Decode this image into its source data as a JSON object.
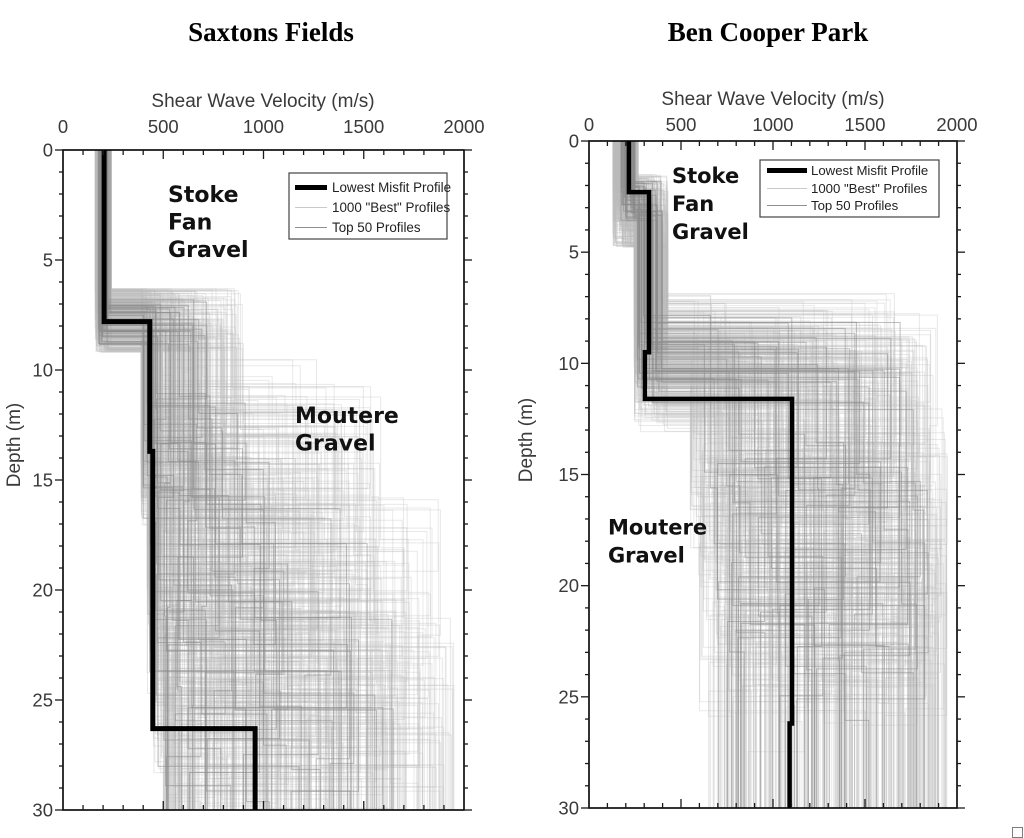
{
  "figure": {
    "background": "#ffffff",
    "axis_text_color": "#3a3a3a",
    "title_color": "#000000"
  },
  "corner_box": {
    "present": true
  },
  "chart_data": [
    {
      "type": "line",
      "subtype": "stepped shear-wave velocity vs depth profiles (inverted depth axis, velocity axis on top)",
      "title": "Saxtons Fields",
      "xlabel": "Shear Wave Velocity (m/s)",
      "ylabel": "Depth (m)",
      "xlim": [
        0,
        2000
      ],
      "ylim": [
        0,
        30
      ],
      "x_major_ticks": [
        0,
        500,
        1000,
        1500,
        2000
      ],
      "x_minor_step": 100,
      "y_major_ticks": [
        0,
        5,
        10,
        15,
        20,
        25,
        30
      ],
      "y_minor_step": 1,
      "legend": {
        "position": "upper-right",
        "entries": [
          {
            "label": "Lowest Misfit Profile",
            "line_color": "#000000",
            "line_width": 5
          },
          {
            "label": "1000 \"Best\" Profiles",
            "line_color": "#c9c9c9",
            "line_width": 1
          },
          {
            "label": "Top 50 Profiles",
            "line_color": "#8f8f8f",
            "line_width": 1
          }
        ]
      },
      "annotations": [
        {
          "lines": [
            "Stoke",
            "Fan",
            "Gravel"
          ],
          "v_mps": 524,
          "depth_m": 2.36
        },
        {
          "lines": [
            "Moutere",
            "Gravel"
          ],
          "v_mps": 1157,
          "depth_m": 12.4
        }
      ],
      "lowest_misfit_profile": {
        "color": "#000000",
        "layers": [
          {
            "v_mps": 205,
            "from_m": 0,
            "to_m": 7.8
          },
          {
            "v_mps": 433,
            "from_m": 7.8,
            "to_m": 13.7
          },
          {
            "v_mps": 448,
            "from_m": 13.7,
            "to_m": 26.3
          },
          {
            "v_mps": 958,
            "from_m": 26.3,
            "to_m": 30
          }
        ]
      },
      "ensembles": [
        {
          "name": "best-1000-profiles",
          "profiles_represented": 1000,
          "render_count": 380,
          "stroke": "#bdbdbd",
          "opacity": 0.33,
          "seed": 101,
          "layers": [
            [
              160,
              242,
              1,
              6.3,
              9.2
            ],
            [
              390,
              900,
              2,
              3,
              8.5
            ],
            [
              420,
              1600,
              2,
              3,
              8.5
            ],
            [
              450,
              1900,
              1.6,
              3,
              8
            ],
            [
              500,
              1950,
              1.4,
              30,
              30
            ]
          ]
        },
        {
          "name": "top-50-profiles",
          "profiles_represented": 50,
          "render_count": 50,
          "stroke": "#8a8a8a",
          "opacity": 0.55,
          "seed": 202,
          "layers": [
            [
              175,
              235,
              1,
              6.8,
              8.9
            ],
            [
              400,
              720,
              1.8,
              3.5,
              8.5
            ],
            [
              430,
              1050,
              1.6,
              3.5,
              8.5
            ],
            [
              460,
              1500,
              1.4,
              3,
              8
            ],
            [
              500,
              1700,
              1.2,
              30,
              30
            ]
          ]
        }
      ]
    },
    {
      "type": "line",
      "subtype": "stepped shear-wave velocity vs depth profiles (inverted depth axis, velocity axis on top)",
      "title": "Ben Cooper Park",
      "xlabel": "Shear Wave Velocity (m/s)",
      "ylabel": "Depth (m)",
      "xlim": [
        0,
        2000
      ],
      "ylim": [
        0,
        30
      ],
      "x_major_ticks": [
        0,
        500,
        1000,
        1500,
        2000
      ],
      "x_minor_step": 100,
      "y_major_ticks": [
        0,
        5,
        10,
        15,
        20,
        25,
        30
      ],
      "y_minor_step": 1,
      "legend": {
        "position": "upper-right",
        "entries": [
          {
            "label": "Lowest Misfit Profile",
            "line_color": "#000000",
            "line_width": 5
          },
          {
            "label": "1000 \"Best\" Profiles",
            "line_color": "#c9c9c9",
            "line_width": 1
          },
          {
            "label": "Top 50 Profiles",
            "line_color": "#8f8f8f",
            "line_width": 1
          }
        ]
      },
      "annotations": [
        {
          "lines": [
            "Stoke",
            "Fan",
            "Gravel"
          ],
          "v_mps": 451,
          "depth_m": 1.9
        },
        {
          "lines": [
            "Moutere",
            "Gravel"
          ],
          "v_mps": 103,
          "depth_m": 17.7
        }
      ],
      "lowest_misfit_profile": {
        "color": "#000000",
        "layers": [
          {
            "v_mps": 217,
            "from_m": 0,
            "to_m": 2.3
          },
          {
            "v_mps": 326,
            "from_m": 2.3,
            "to_m": 9.5
          },
          {
            "v_mps": 304,
            "from_m": 9.5,
            "to_m": 11.6
          },
          {
            "v_mps": 1103,
            "from_m": 11.6,
            "to_m": 26.2
          },
          {
            "v_mps": 1090,
            "from_m": 26.2,
            "to_m": 30
          }
        ]
      },
      "ensembles": [
        {
          "name": "best-1000-profiles",
          "profiles_represented": 1000,
          "render_count": 380,
          "stroke": "#bdbdbd",
          "opacity": 0.33,
          "seed": 303,
          "layers": [
            [
              130,
              268,
              1,
              1.5,
              4.8
            ],
            [
              245,
              430,
              1.3,
              5,
              8.5
            ],
            [
              550,
              1900,
              1.1,
              3,
              8
            ],
            [
              600,
              1950,
              1.1,
              3,
              8
            ],
            [
              650,
              1950,
              1,
              30,
              30
            ]
          ]
        },
        {
          "name": "top-50-profiles",
          "profiles_represented": 50,
          "render_count": 50,
          "stroke": "#8a8a8a",
          "opacity": 0.55,
          "seed": 404,
          "layers": [
            [
              170,
              250,
              1,
              1.8,
              3.6
            ],
            [
              260,
              400,
              1.2,
              5.5,
              8.5
            ],
            [
              620,
              1750,
              1.1,
              3.5,
              8
            ],
            [
              680,
              1850,
              1,
              4,
              8
            ],
            [
              700,
              1850,
              1,
              30,
              30
            ]
          ]
        }
      ]
    }
  ]
}
